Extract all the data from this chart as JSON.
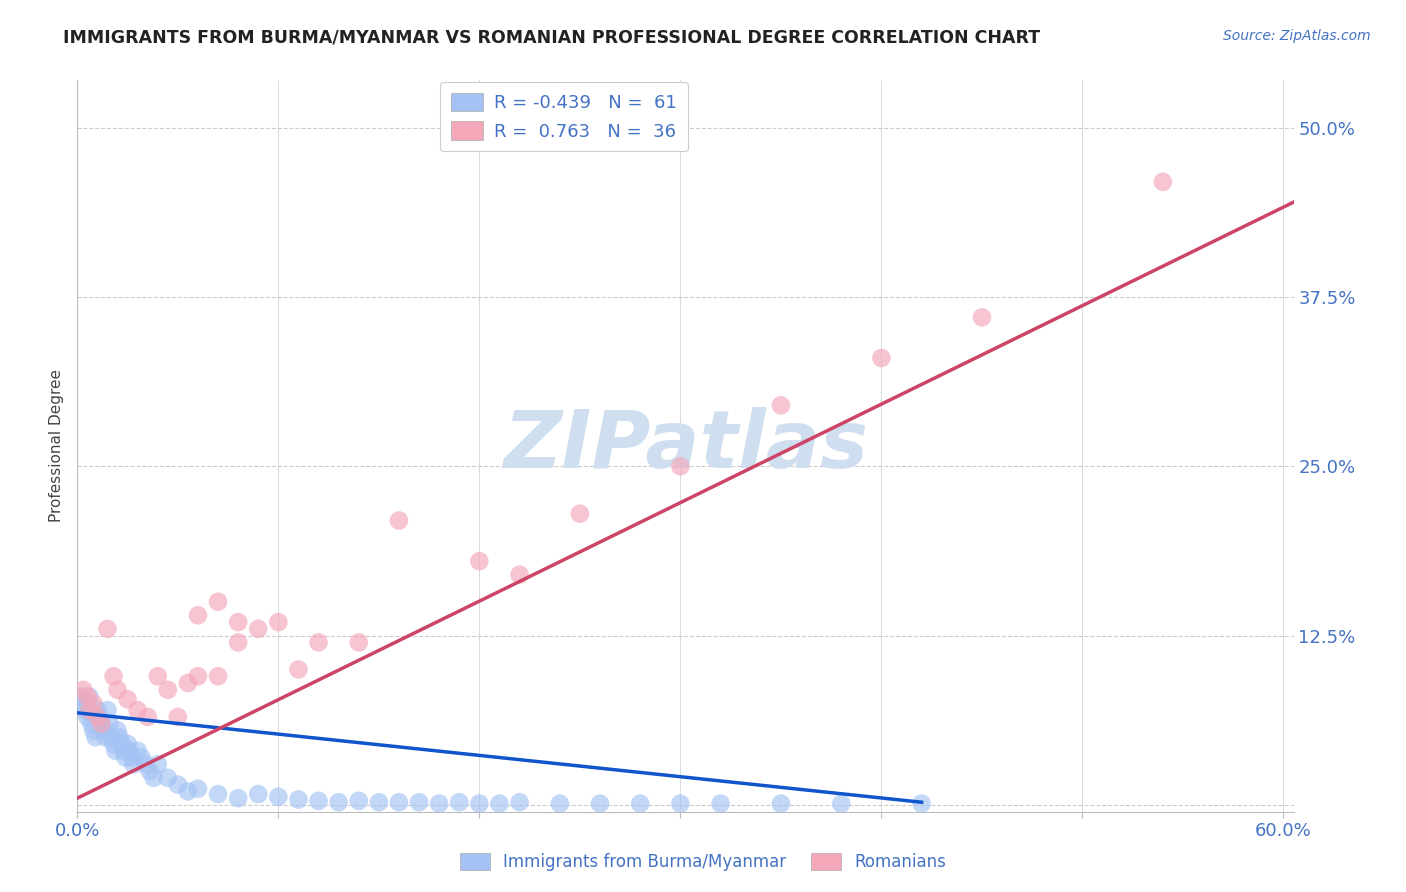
{
  "title": "IMMIGRANTS FROM BURMA/MYANMAR VS ROMANIAN PROFESSIONAL DEGREE CORRELATION CHART",
  "source": "Source: ZipAtlas.com",
  "ylabel": "Professional Degree",
  "xlim": [
    0.0,
    0.605
  ],
  "ylim": [
    -0.005,
    0.535
  ],
  "xticks": [
    0.0,
    0.1,
    0.2,
    0.3,
    0.4,
    0.5,
    0.6
  ],
  "xticklabels": [
    "0.0%",
    "",
    "",
    "",
    "",
    "",
    "60.0%"
  ],
  "yticks": [
    0.0,
    0.125,
    0.25,
    0.375,
    0.5
  ],
  "yticklabels": [
    "",
    "12.5%",
    "25.0%",
    "37.5%",
    "50.0%"
  ],
  "title_color": "#222222",
  "axis_color": "#4472c4",
  "watermark": "ZIPatlas",
  "watermark_color": "#d0dff0",
  "blue_color": "#a4c2f4",
  "pink_color": "#f4a7b9",
  "blue_line_color": "#1155cc",
  "pink_line_color": "#cc4466",
  "grid_color": "#cccccc",
  "background_color": "#ffffff",
  "blue_x": [
    0.002,
    0.003,
    0.004,
    0.005,
    0.006,
    0.007,
    0.008,
    0.009,
    0.01,
    0.011,
    0.012,
    0.013,
    0.014,
    0.015,
    0.016,
    0.017,
    0.018,
    0.019,
    0.02,
    0.021,
    0.022,
    0.023,
    0.024,
    0.025,
    0.026,
    0.027,
    0.028,
    0.03,
    0.032,
    0.034,
    0.036,
    0.038,
    0.04,
    0.045,
    0.05,
    0.055,
    0.06,
    0.07,
    0.08,
    0.09,
    0.1,
    0.11,
    0.12,
    0.13,
    0.14,
    0.15,
    0.16,
    0.17,
    0.18,
    0.19,
    0.2,
    0.21,
    0.22,
    0.24,
    0.26,
    0.28,
    0.3,
    0.32,
    0.35,
    0.38,
    0.42
  ],
  "blue_y": [
    0.08,
    0.075,
    0.07,
    0.065,
    0.08,
    0.06,
    0.055,
    0.05,
    0.07,
    0.065,
    0.06,
    0.055,
    0.05,
    0.07,
    0.06,
    0.05,
    0.045,
    0.04,
    0.055,
    0.05,
    0.045,
    0.04,
    0.035,
    0.045,
    0.04,
    0.035,
    0.03,
    0.04,
    0.035,
    0.03,
    0.025,
    0.02,
    0.03,
    0.02,
    0.015,
    0.01,
    0.012,
    0.008,
    0.005,
    0.008,
    0.006,
    0.004,
    0.003,
    0.002,
    0.003,
    0.002,
    0.002,
    0.002,
    0.001,
    0.002,
    0.001,
    0.001,
    0.002,
    0.001,
    0.001,
    0.001,
    0.001,
    0.001,
    0.001,
    0.001,
    0.001
  ],
  "pink_x": [
    0.003,
    0.005,
    0.006,
    0.008,
    0.01,
    0.012,
    0.015,
    0.018,
    0.02,
    0.025,
    0.03,
    0.035,
    0.04,
    0.045,
    0.05,
    0.055,
    0.06,
    0.07,
    0.08,
    0.09,
    0.1,
    0.11,
    0.12,
    0.14,
    0.16,
    0.2,
    0.22,
    0.25,
    0.3,
    0.35,
    0.4,
    0.45,
    0.54,
    0.06,
    0.07,
    0.08
  ],
  "pink_y": [
    0.085,
    0.08,
    0.07,
    0.075,
    0.065,
    0.06,
    0.13,
    0.095,
    0.085,
    0.078,
    0.07,
    0.065,
    0.095,
    0.085,
    0.065,
    0.09,
    0.095,
    0.095,
    0.12,
    0.13,
    0.135,
    0.1,
    0.12,
    0.12,
    0.21,
    0.18,
    0.17,
    0.215,
    0.25,
    0.295,
    0.33,
    0.36,
    0.46,
    0.14,
    0.15,
    0.135
  ],
  "blue_line_x": [
    0.0,
    0.42
  ],
  "blue_line_y": [
    0.068,
    0.002
  ],
  "pink_line_x": [
    0.0,
    0.605
  ],
  "pink_line_y": [
    0.005,
    0.445
  ]
}
